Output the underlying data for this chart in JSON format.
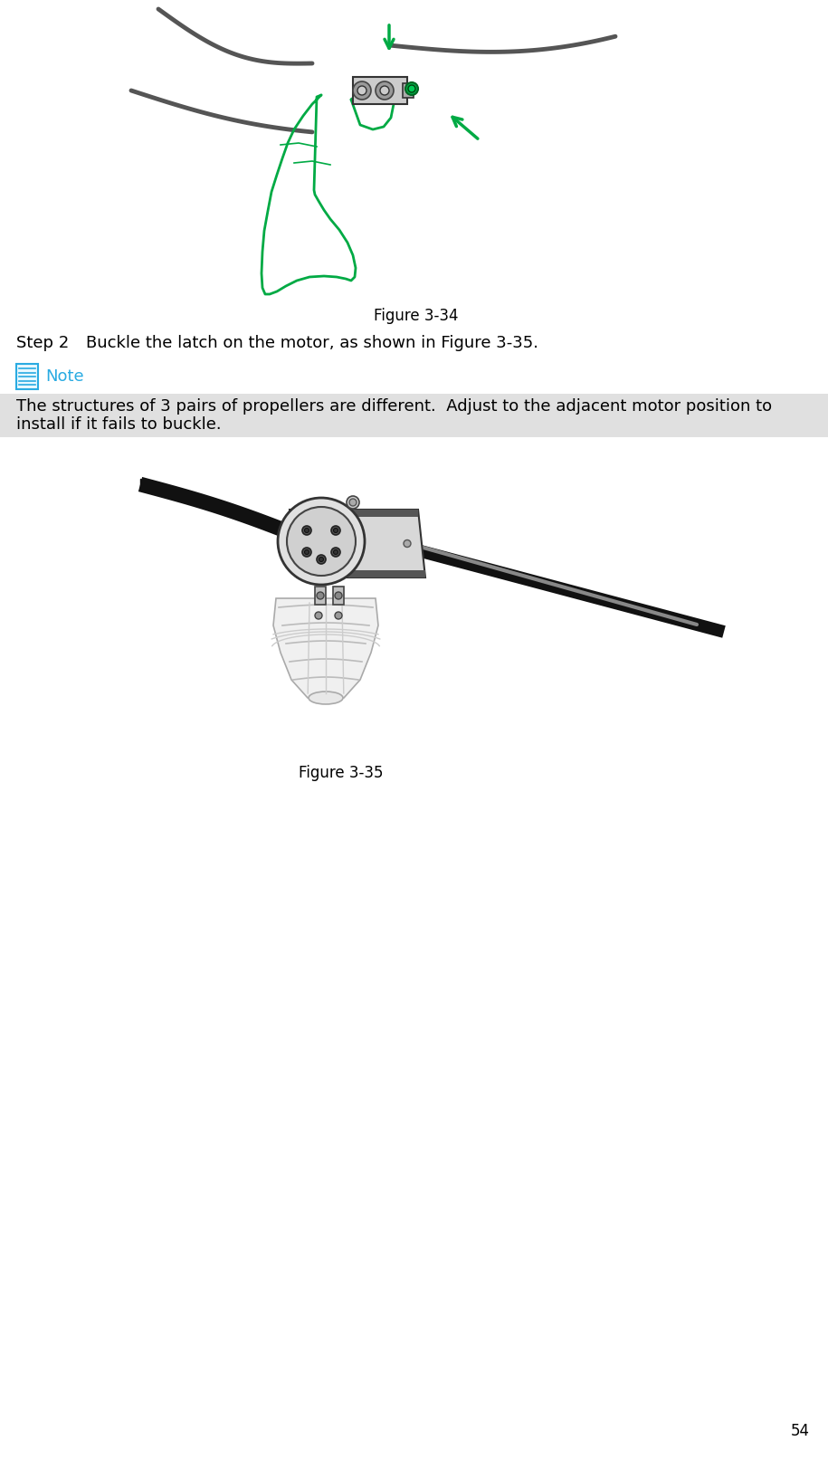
{
  "background_color": "#ffffff",
  "page_number": "54",
  "fig34_caption": "Figure 3-34",
  "step2_label": "Step 2",
  "step2_text": "   Buckle the latch on the motor, as shown in Figure 3-35.",
  "note_label": "Note",
  "note_color": "#29ABE2",
  "note_text_line1": "The structures of 3 pairs of propellers are different.  Adjust to the adjacent motor position to",
  "note_text_line2": "install if it fails to buckle.",
  "note_bg_color": "#e0e0e0",
  "fig35_caption": "Figure 3-35",
  "text_color": "#000000",
  "font_size_body": 13,
  "font_size_caption": 12,
  "font_size_note": 13,
  "font_size_page": 12
}
